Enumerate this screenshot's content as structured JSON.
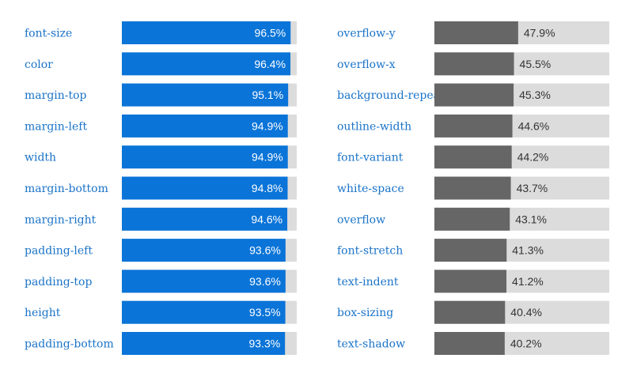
{
  "chart_data": [
    {
      "type": "bar",
      "orientation": "horizontal",
      "categories": [
        "font-size",
        "color",
        "margin-top",
        "margin-left",
        "width",
        "margin-bottom",
        "margin-right",
        "padding-left",
        "padding-top",
        "height",
        "padding-bottom"
      ],
      "values": [
        96.5,
        96.4,
        95.1,
        94.9,
        94.9,
        94.8,
        94.6,
        93.6,
        93.6,
        93.5,
        93.3
      ],
      "value_labels": [
        "96.5%",
        "96.4%",
        "95.1%",
        "94.9%",
        "94.9%",
        "94.8%",
        "94.6%",
        "93.6%",
        "93.6%",
        "93.5%",
        "93.3%"
      ],
      "xlim": [
        0,
        100
      ],
      "bar_color": "#0a74d8",
      "track_color": "#dcdcdc",
      "label_color": "#1a73c8",
      "value_text_color": "#ffffff",
      "value_label_position": "inside-end",
      "grid": false,
      "legend": "none"
    },
    {
      "type": "bar",
      "orientation": "horizontal",
      "categories": [
        "overflow-y",
        "overflow-x",
        "background-repeat",
        "outline-width",
        "font-variant",
        "white-space",
        "overflow",
        "font-stretch",
        "text-indent",
        "box-sizing",
        "text-shadow"
      ],
      "values": [
        47.9,
        45.5,
        45.3,
        44.6,
        44.2,
        43.7,
        43.1,
        41.3,
        41.2,
        40.4,
        40.2
      ],
      "value_labels": [
        "47.9%",
        "45.5%",
        "45.3%",
        "44.6%",
        "44.2%",
        "43.7%",
        "43.1%",
        "41.3%",
        "41.2%",
        "40.4%",
        "40.2%"
      ],
      "xlim": [
        0,
        100
      ],
      "bar_color": "#666666",
      "track_color": "#dcdcdc",
      "label_color": "#1a73c8",
      "value_text_color": "#333333",
      "value_label_position": "outside-end",
      "grid": false,
      "legend": "none"
    }
  ]
}
